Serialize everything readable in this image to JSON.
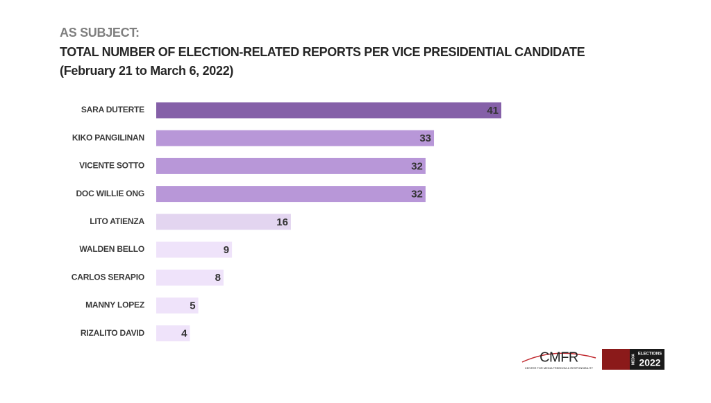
{
  "chart_data": {
    "type": "bar",
    "orientation": "horizontal",
    "kicker": "AS SUBJECT:",
    "title": "TOTAL NUMBER OF  ELECTION-RELATED REPORTS PER VICE PRESIDENTIAL CANDIDATE",
    "subtitle": "(February 21 to March 6, 2022)",
    "categories": [
      "SARA DUTERTE",
      "KIKO PANGILINAN",
      "VICENTE SOTTO",
      "DOC WILLIE ONG",
      "LITO ATIENZA",
      "WALDEN BELLO",
      "CARLOS SERAPIO",
      "MANNY LOPEZ",
      "RIZALITO DAVID"
    ],
    "values": [
      41,
      33,
      32,
      32,
      16,
      9,
      8,
      5,
      4
    ],
    "colors": [
      "#8560a8",
      "#b897d8",
      "#b897d8",
      "#b897d8",
      "#e3d5f0",
      "#efe3fa",
      "#efe3fa",
      "#efe3fa",
      "#efe3fa"
    ]
  },
  "footer": {
    "cmfr": "CMFR",
    "cmfr_sub": "CENTER FOR MEDIA FREEDOM & RESPONSIBILITY",
    "media": "MEDIA",
    "elections": "ELECTIONS",
    "year": "2022"
  }
}
